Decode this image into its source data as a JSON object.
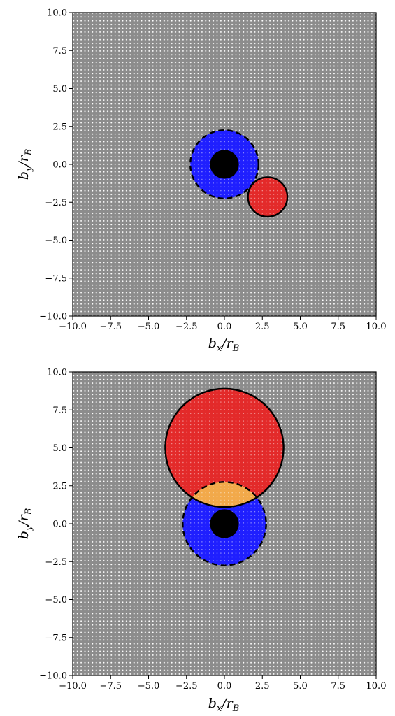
{
  "chart_data": [
    {
      "type": "scatter",
      "title": "",
      "xlabel": "b_x/r_B",
      "ylabel": "b_y/r_B",
      "xlim": [
        -10.0,
        10.0
      ],
      "ylim": [
        -10.0,
        10.0
      ],
      "xticks": [
        "−10.0",
        "−7.5",
        "−5.0",
        "−2.5",
        "0.0",
        "2.5",
        "5.0",
        "7.5",
        "10.0"
      ],
      "yticks": [
        "−10.0",
        "−7.5",
        "−5.0",
        "−2.5",
        "0.0",
        "2.5",
        "5.0",
        "7.5",
        "10.0"
      ],
      "grid_spacing": 0.25,
      "background_color": "#8c8c8c",
      "grid_point_color": "#ffffff",
      "circles": [
        {
          "role": "disk",
          "cx": 0.0,
          "cy": 0.0,
          "r": 2.25,
          "fill": "#1f1fff",
          "stroke": "dashed"
        },
        {
          "role": "occulter",
          "cx": 2.85,
          "cy": -2.15,
          "r": 1.3,
          "fill": "#e32a2a",
          "stroke": "solid"
        },
        {
          "role": "body",
          "cx": 0.0,
          "cy": 0.0,
          "r": 0.95,
          "fill": "#000000",
          "stroke": "none"
        }
      ],
      "overlap_fill": null
    },
    {
      "type": "scatter",
      "title": "",
      "xlabel": "b_x/r_B",
      "ylabel": "b_y/r_B",
      "xlim": [
        -10.0,
        10.0
      ],
      "ylim": [
        -10.0,
        10.0
      ],
      "xticks": [
        "−10.0",
        "−7.5",
        "−5.0",
        "−2.5",
        "0.0",
        "2.5",
        "5.0",
        "7.5",
        "10.0"
      ],
      "yticks": [
        "−10.0",
        "−7.5",
        "−5.0",
        "−2.5",
        "0.0",
        "2.5",
        "5.0",
        "7.5",
        "10.0"
      ],
      "grid_spacing": 0.25,
      "background_color": "#8c8c8c",
      "grid_point_color": "#ffffff",
      "circles": [
        {
          "role": "disk",
          "cx": 0.0,
          "cy": 0.0,
          "r": 2.75,
          "fill": "#1f1fff",
          "stroke": "dashed"
        },
        {
          "role": "occulter",
          "cx": 0.0,
          "cy": 5.0,
          "r": 3.9,
          "fill": "#e32a2a",
          "stroke": "solid"
        },
        {
          "role": "body",
          "cx": 0.0,
          "cy": 0.0,
          "r": 0.95,
          "fill": "#000000",
          "stroke": "none"
        }
      ],
      "overlap_fill": "#f2a94a"
    }
  ]
}
